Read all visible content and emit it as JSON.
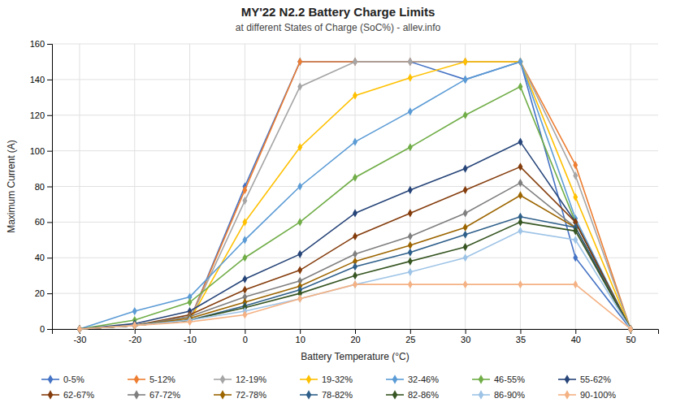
{
  "chart_data": {
    "type": "line",
    "title": "MY'22 N2.2 Battery Charge Limits",
    "subtitle": "at different States of Charge (SoC%) - allev.info",
    "xlabel": "Battery Temperature (°C)",
    "ylabel": "Maximum Current (A)",
    "categories": [
      "-30",
      "-20",
      "-10",
      "0",
      "10",
      "20",
      "25",
      "30",
      "35",
      "40",
      "50"
    ],
    "ylim": [
      0,
      160
    ],
    "yticks": [
      0,
      20,
      40,
      60,
      80,
      100,
      120,
      140,
      160
    ],
    "grid": true,
    "legend": "bottom",
    "marker": "diamond",
    "series": [
      {
        "name": "0-5%",
        "color": "#4472C4",
        "values": [
          0,
          2,
          5,
          80,
          150,
          150,
          150,
          140,
          150,
          40,
          0
        ]
      },
      {
        "name": "5-12%",
        "color": "#ED7D31",
        "values": [
          0,
          2,
          5,
          78,
          150,
          150,
          150,
          150,
          150,
          92,
          0
        ]
      },
      {
        "name": "12-19%",
        "color": "#A5A5A5",
        "values": [
          0,
          2,
          5,
          72,
          136,
          150,
          150,
          150,
          150,
          86,
          0
        ]
      },
      {
        "name": "19-32%",
        "color": "#FFC000",
        "values": [
          0,
          2,
          5,
          60,
          102,
          131,
          141,
          150,
          150,
          74,
          0
        ]
      },
      {
        "name": "32-46%",
        "color": "#5B9BD5",
        "values": [
          0,
          10,
          18,
          50,
          80,
          105,
          122,
          140,
          150,
          62,
          0
        ]
      },
      {
        "name": "46-55%",
        "color": "#70AD47",
        "values": [
          0,
          5,
          15,
          40,
          60,
          85,
          102,
          120,
          136,
          60,
          0
        ]
      },
      {
        "name": "55-62%",
        "color": "#264478",
        "values": [
          0,
          3,
          10,
          28,
          42,
          65,
          78,
          90,
          105,
          60,
          0
        ]
      },
      {
        "name": "62-67%",
        "color": "#843C0C",
        "values": [
          0,
          2,
          8,
          22,
          33,
          52,
          65,
          78,
          91,
          60,
          0
        ]
      },
      {
        "name": "67-72%",
        "color": "#7F7F7F",
        "values": [
          0,
          2,
          7,
          18,
          27,
          42,
          52,
          65,
          82,
          57,
          0
        ]
      },
      {
        "name": "72-78%",
        "color": "#9C6500",
        "values": [
          0,
          2,
          6,
          15,
          24,
          38,
          47,
          57,
          75,
          57,
          0
        ]
      },
      {
        "name": "78-82%",
        "color": "#2E5F8A",
        "values": [
          0,
          2,
          5,
          13,
          22,
          35,
          43,
          53,
          63,
          57,
          0
        ]
      },
      {
        "name": "82-86%",
        "color": "#375623",
        "values": [
          0,
          2,
          5,
          12,
          20,
          30,
          38,
          46,
          60,
          55,
          0
        ]
      },
      {
        "name": "86-90%",
        "color": "#9DC3E6",
        "values": [
          0,
          2,
          5,
          10,
          17,
          25,
          32,
          40,
          55,
          50,
          0
        ]
      },
      {
        "name": "90-100%",
        "color": "#F4B183",
        "values": [
          0,
          2,
          4,
          8,
          17,
          25,
          25,
          25,
          25,
          25,
          0
        ]
      }
    ]
  }
}
